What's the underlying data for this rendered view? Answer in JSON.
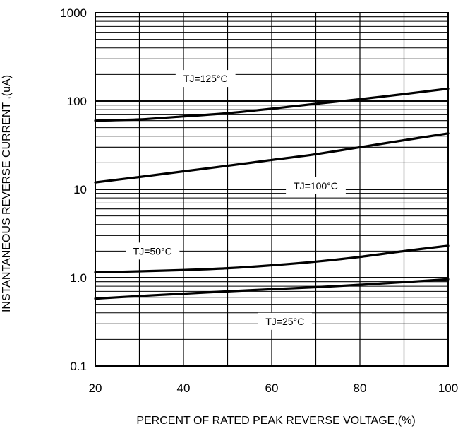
{
  "chart_data": {
    "type": "line",
    "xlabel": "PERCENT OF RATED PEAK REVERSE VOLTAGE,(%)",
    "ylabel": "INSTANTANEOUS  REVERSE  CURRENT ,(uA)",
    "x_scale": "linear",
    "y_scale": "log",
    "xlim": [
      20,
      100
    ],
    "ylim": [
      0.1,
      1000
    ],
    "xticks": [
      20,
      40,
      60,
      80,
      100
    ],
    "xtick_labels": [
      "20",
      "40",
      "60",
      "80",
      "100"
    ],
    "yticks": [
      0.1,
      1,
      10,
      100,
      1000
    ],
    "ytick_labels": [
      "0.1",
      "1.0",
      "10",
      "100",
      "1000"
    ],
    "grid": true,
    "series": [
      {
        "name": "TJ=125°C",
        "x": [
          20,
          30,
          40,
          50,
          60,
          70,
          80,
          90,
          100
        ],
        "y": [
          60,
          62,
          67,
          73,
          82,
          93,
          105,
          120,
          138
        ],
        "label_x": 45,
        "label_y": 180
      },
      {
        "name": "TJ=100°C",
        "x": [
          20,
          30,
          40,
          50,
          60,
          70,
          80,
          90,
          100
        ],
        "y": [
          12,
          13.8,
          16,
          18.5,
          21.5,
          25,
          30,
          36,
          43
        ],
        "label_x": 70,
        "label_y": 11
      },
      {
        "name": "TJ=50°C",
        "x": [
          20,
          30,
          40,
          50,
          60,
          70,
          80,
          90,
          100
        ],
        "y": [
          1.15,
          1.18,
          1.22,
          1.28,
          1.38,
          1.52,
          1.72,
          2.0,
          2.3
        ],
        "label_x": 33,
        "label_y": 2.0
      },
      {
        "name": "TJ=25°C",
        "x": [
          20,
          30,
          40,
          50,
          60,
          70,
          80,
          90,
          100
        ],
        "y": [
          0.58,
          0.62,
          0.66,
          0.7,
          0.74,
          0.78,
          0.83,
          0.89,
          0.96
        ],
        "label_x": 63,
        "label_y": 0.32
      }
    ]
  }
}
